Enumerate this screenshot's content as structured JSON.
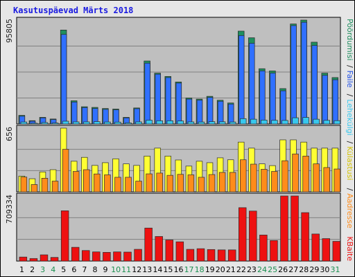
{
  "chart_data": {
    "type": "bar",
    "title": "Kasutuspäevad Märts 2018",
    "categories": [
      "1",
      "2",
      "3",
      "4",
      "5",
      "6",
      "7",
      "8",
      "9",
      "10",
      "11",
      "12",
      "13",
      "14",
      "15",
      "16",
      "17",
      "18",
      "19",
      "20",
      "21",
      "22",
      "23",
      "24",
      "25",
      "26",
      "27",
      "28",
      "29",
      "30",
      "31"
    ],
    "weekend_days": [
      3,
      4,
      10,
      11,
      17,
      18,
      24,
      25,
      31
    ],
    "colors": {
      "background": "#e6e6e6",
      "plot_bg": "#bfbfbf",
      "grid": "#808080",
      "pages": "#1f4fe6",
      "files": "#3070ff",
      "hits": "#1f8f5f",
      "visits": "#ffff33",
      "sites": "#ff8c1a",
      "kbytes": "#ee1111",
      "weekday_text": "#000000",
      "weekend_text": "#1a8f50",
      "title_text": "#1a1ae0"
    },
    "panels": [
      {
        "max_label": "95805",
        "series": [
          {
            "name": "Pöördumisi",
            "color": "#1f8f5f",
            "values": [
              7800,
              3000,
              6000,
              4500,
              85000,
              21000,
              15600,
              15000,
              14000,
              13500,
              6000,
              14500,
              57000,
              46000,
              43000,
              38000,
              23500,
              22500,
              25000,
              21500,
              19000,
              84000,
              78000,
              50000,
              48000,
              32000,
              90500,
              94000,
              74000,
              46000,
              42000
            ]
          },
          {
            "name": "Faile",
            "color": "#3070ff",
            "values": [
              7000,
              2500,
              5500,
              4000,
              81000,
              19800,
              14800,
              14000,
              13200,
              12800,
              5500,
              13800,
              55000,
              45000,
              42000,
              37000,
              22500,
              21500,
              24000,
              20500,
              18000,
              80000,
              73000,
              48000,
              46000,
              30000,
              89000,
              92000,
              71000,
              44000,
              40000
            ]
          },
          {
            "name": "Lehekülgi",
            "color": "#38c8ee",
            "values": [
              1800,
              700,
              1300,
              900,
              2500,
              1900,
              1900,
              2100,
              1800,
              1700,
              1000,
              1900,
              3400,
              2900,
              2900,
              2700,
              1900,
              1800,
              2100,
              2000,
              1800,
              4800,
              4300,
              3500,
              3300,
              3200,
              5600,
              5900,
              4300,
              3300,
              3000
            ]
          }
        ]
      },
      {
        "max_label": "656",
        "series": [
          {
            "name": "Külastusi",
            "color": "#ffff33",
            "values": [
              162,
              135,
              205,
              228,
              656,
              315,
              355,
              272,
              300,
              340,
              288,
              272,
              368,
              450,
              368,
              328,
              265,
              315,
              300,
              350,
              330,
              512,
              450,
              288,
              270,
              535,
              535,
              512,
              450,
              450,
              450
            ]
          },
          {
            "name": "Aadresse",
            "color": "#ff8c1a",
            "values": [
              152,
              75,
              140,
              110,
              438,
              210,
              228,
              184,
              175,
              150,
              150,
              110,
              185,
              193,
              170,
              180,
              175,
              150,
              178,
              200,
              200,
              330,
              285,
              232,
              210,
              320,
              390,
              368,
              288,
              250,
              235
            ]
          }
        ]
      },
      {
        "max_label": "709334",
        "series": [
          {
            "name": "KBaite",
            "color": "#ee1111",
            "values": [
              44000,
              28000,
              68000,
              40000,
              548000,
              150000,
              115000,
              100000,
              95000,
              100000,
              98000,
              128000,
              360000,
              268000,
              230000,
              210000,
              128000,
              135000,
              126000,
              122000,
              122000,
              582000,
              545000,
              284000,
              224000,
              709334,
              709334,
              528000,
              295000,
              245000,
              215000
            ]
          }
        ]
      }
    ],
    "right_labels": [
      {
        "text": "Pöördumisi",
        "color": "#1f8f5f"
      },
      {
        "text": "/",
        "color": "#202020"
      },
      {
        "text": "Faile",
        "color": "#1f4fe6"
      },
      {
        "text": "/",
        "color": "#202020"
      },
      {
        "text": "Lehekülgi",
        "color": "#38c8ee"
      },
      {
        "text": "/",
        "color": "#202020"
      },
      {
        "text": "Külastusi",
        "color": "#d4c400"
      },
      {
        "text": "/",
        "color": "#202020"
      },
      {
        "text": "Aadresse",
        "color": "#ff8c1a"
      },
      {
        "text": "KBaite",
        "color": "#ee1111"
      }
    ]
  }
}
